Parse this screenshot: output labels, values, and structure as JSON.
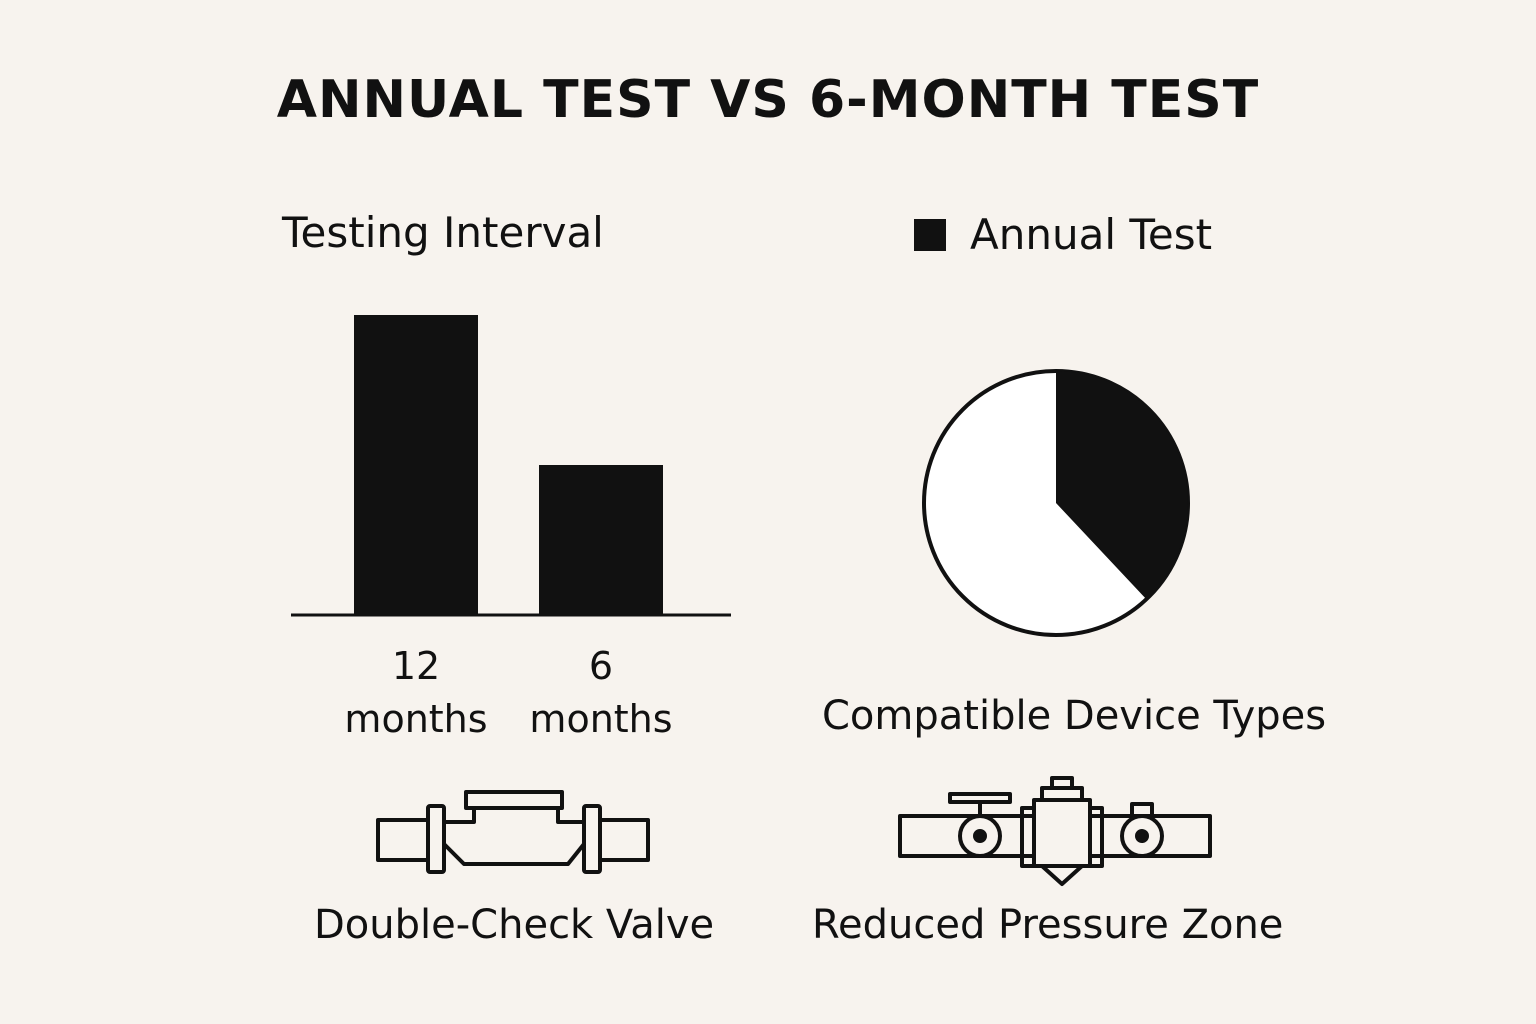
{
  "title": "ANNUAL TEST VS 6-MONTH TEST",
  "colors": {
    "background": "#f7f3ee",
    "ink": "#111111",
    "pie_remainder": "#ffffff"
  },
  "chart_data": [
    {
      "type": "bar",
      "title": "Testing Interval",
      "categories": [
        "12 months",
        "6 months"
      ],
      "category_lines": [
        [
          "12",
          "months"
        ],
        [
          "6",
          "months"
        ]
      ],
      "values": [
        12,
        6
      ],
      "ylim": [
        0,
        12.6
      ],
      "xlabel": "",
      "ylabel": "",
      "grid": false
    },
    {
      "type": "pie",
      "title": "Compatible Device Types",
      "legend": {
        "position": "top-right",
        "entries": [
          "Annual Test"
        ]
      },
      "slices": [
        {
          "label": "Annual Test",
          "value": 38,
          "color": "#111111"
        },
        {
          "label": "",
          "value": 62,
          "color": "#ffffff"
        }
      ]
    }
  ],
  "devices": [
    {
      "label": "Double-Check Valve",
      "icon": "double-check-valve-icon"
    },
    {
      "label": "Reduced Pressure Zone",
      "icon": "reduced-pressure-zone-icon"
    }
  ]
}
